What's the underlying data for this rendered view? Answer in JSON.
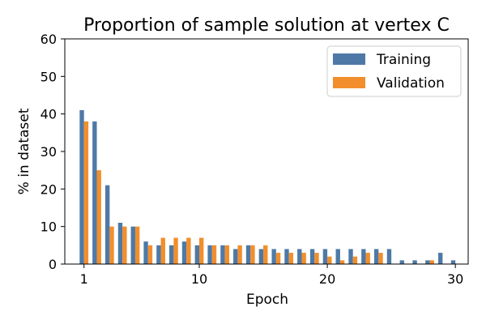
{
  "chart_data": {
    "type": "bar",
    "title": "Proportion of sample solution at vertex C",
    "xlabel": "Epoch",
    "ylabel": "% in dataset",
    "ylim": [
      0,
      60
    ],
    "xlim": [
      -0.5,
      31
    ],
    "yticks": [
      0,
      10,
      20,
      30,
      40,
      50,
      60
    ],
    "xticks": [
      1,
      10,
      20,
      30
    ],
    "grid": false,
    "legend_position": "top-right",
    "x": [
      1,
      2,
      3,
      4,
      5,
      6,
      7,
      8,
      9,
      10,
      11,
      12,
      13,
      14,
      15,
      16,
      17,
      18,
      19,
      20,
      21,
      22,
      23,
      24,
      25,
      26,
      27,
      28,
      29,
      30
    ],
    "series": [
      {
        "name": "Training",
        "color": "#4e79a7",
        "values": [
          41,
          38,
          21,
          11,
          10,
          6,
          5,
          5,
          6,
          5,
          5,
          5,
          4,
          5,
          4,
          4,
          4,
          4,
          4,
          4,
          4,
          4,
          4,
          4,
          4,
          1,
          1,
          1,
          3,
          1
        ]
      },
      {
        "name": "Validation",
        "color": "#f28e2b",
        "values": [
          38,
          25,
          10,
          10,
          10,
          5,
          7,
          7,
          7,
          7,
          5,
          5,
          5,
          5,
          5,
          3,
          3,
          3,
          3,
          2,
          1,
          2,
          3,
          3,
          0,
          0,
          0,
          1,
          0,
          0
        ]
      }
    ]
  }
}
